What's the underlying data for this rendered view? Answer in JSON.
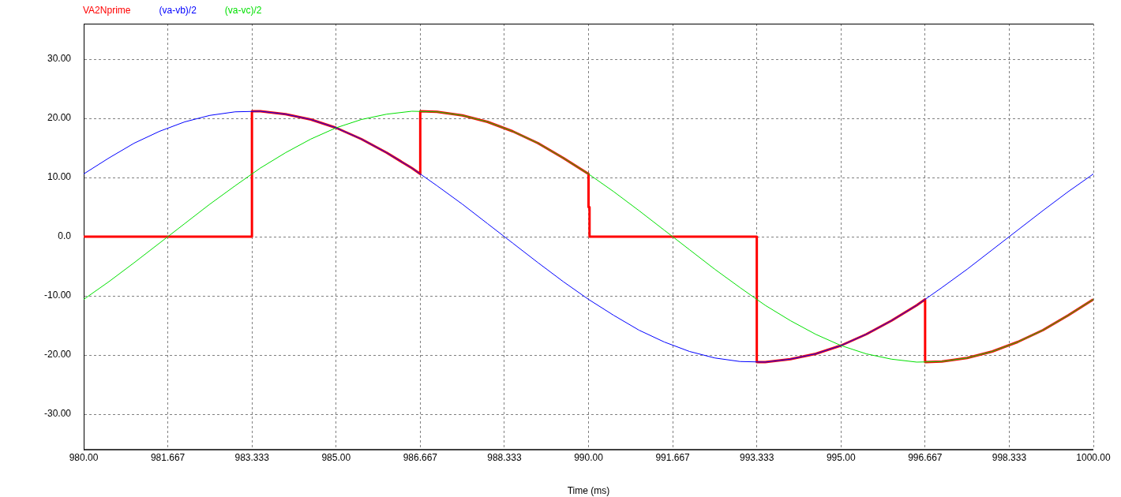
{
  "chart_data": {
    "type": "line",
    "xlabel": "Time (ms)",
    "legend": "top left",
    "grid": true,
    "xlim": [
      980,
      1000
    ],
    "ylim": [
      -36,
      36
    ],
    "xticks": [
      {
        "value": 980,
        "label": "980.00"
      },
      {
        "value": 981.667,
        "label": "981.667"
      },
      {
        "value": 983.333,
        "label": "983.333"
      },
      {
        "value": 985,
        "label": "985.00"
      },
      {
        "value": 986.667,
        "label": "986.667"
      },
      {
        "value": 988.333,
        "label": "988.333"
      },
      {
        "value": 990,
        "label": "990.00"
      },
      {
        "value": 991.667,
        "label": "991.667"
      },
      {
        "value": 993.333,
        "label": "993.333"
      },
      {
        "value": 995,
        "label": "995.00"
      },
      {
        "value": 996.667,
        "label": "996.667"
      },
      {
        "value": 998.333,
        "label": "998.333"
      },
      {
        "value": 1000,
        "label": "1000.00"
      }
    ],
    "yticks": [
      {
        "value": -30,
        "label": "-30.00"
      },
      {
        "value": -20,
        "label": "-20.00"
      },
      {
        "value": -10,
        "label": "-10.00"
      },
      {
        "value": 0,
        "label": "0.0"
      },
      {
        "value": 10,
        "label": "10.00"
      },
      {
        "value": 20,
        "label": "20.00"
      },
      {
        "value": 30,
        "label": "30.00"
      }
    ],
    "series": [
      {
        "name": "VA2Nprime",
        "color": "#ff0000",
        "x": [
          980,
          983.333,
          983.333,
          983.5,
          984,
          984.5,
          985,
          985.5,
          986,
          986.5,
          986.667,
          986.667,
          987,
          987.5,
          988,
          988.5,
          989,
          989.5,
          990,
          990,
          990.02,
          990.02,
          993.333,
          993.333,
          993.5,
          994,
          994.5,
          995,
          995.5,
          996,
          996.5,
          996.667,
          996.667,
          997,
          997.5,
          998,
          998.5,
          999,
          999.5,
          1000
        ],
        "values": [
          0,
          0,
          21.2,
          21.2,
          20.7,
          19.8,
          18.4,
          16.5,
          14.2,
          11.6,
          10.6,
          21.2,
          21.1,
          20.5,
          19.4,
          17.8,
          15.8,
          13.3,
          10.6,
          5,
          5,
          0,
          0,
          -21.2,
          -21.2,
          -20.7,
          -19.8,
          -18.4,
          -16.5,
          -14.2,
          -11.6,
          -10.6,
          -21.2,
          -21.1,
          -20.5,
          -19.4,
          -17.8,
          -15.8,
          -13.3,
          -10.6
        ]
      },
      {
        "name": "(va-vb)/2",
        "color": "#0000ff",
        "x": [
          980,
          980.5,
          981,
          981.5,
          982,
          982.5,
          983,
          983.5,
          984,
          984.5,
          985,
          985.5,
          986,
          986.5,
          987,
          987.5,
          988,
          988.5,
          989,
          989.5,
          990,
          990.5,
          991,
          991.5,
          992,
          992.5,
          993,
          993.5,
          994,
          994.5,
          995,
          995.5,
          996,
          996.5,
          997,
          997.5,
          998,
          998.5,
          999,
          999.5,
          1000
        ],
        "values": [
          10.6,
          13.3,
          15.8,
          17.8,
          19.4,
          20.5,
          21.1,
          21.2,
          20.7,
          19.8,
          18.4,
          16.5,
          14.2,
          11.6,
          8.6,
          5.5,
          2.2,
          -1.1,
          -4.4,
          -7.6,
          -10.6,
          -13.3,
          -15.8,
          -17.8,
          -19.4,
          -20.5,
          -21.1,
          -21.2,
          -20.7,
          -19.8,
          -18.4,
          -16.5,
          -14.2,
          -11.6,
          -8.6,
          -5.5,
          -2.2,
          1.1,
          4.4,
          7.6,
          10.6
        ]
      },
      {
        "name": "(va-vc)/2",
        "color": "#00e000",
        "x": [
          980,
          980.5,
          981,
          981.5,
          982,
          982.5,
          983,
          983.5,
          984,
          984.5,
          985,
          985.5,
          986,
          986.5,
          987,
          987.5,
          988,
          988.5,
          989,
          989.5,
          990,
          990.5,
          991,
          991.5,
          992,
          992.5,
          993,
          993.5,
          994,
          994.5,
          995,
          995.5,
          996,
          996.5,
          997,
          997.5,
          998,
          998.5,
          999,
          999.5,
          1000
        ],
        "values": [
          -10.6,
          -7.6,
          -4.4,
          -1.1,
          2.2,
          5.5,
          8.6,
          11.6,
          14.2,
          16.5,
          18.4,
          19.8,
          20.7,
          21.2,
          21.1,
          20.5,
          19.4,
          17.8,
          15.8,
          13.3,
          10.6,
          7.6,
          4.4,
          1.1,
          -2.2,
          -5.5,
          -8.6,
          -11.6,
          -14.2,
          -16.5,
          -18.4,
          -19.8,
          -20.7,
          -21.2,
          -21.1,
          -20.5,
          -19.4,
          -17.8,
          -15.8,
          -13.3,
          -10.6
        ]
      }
    ]
  }
}
